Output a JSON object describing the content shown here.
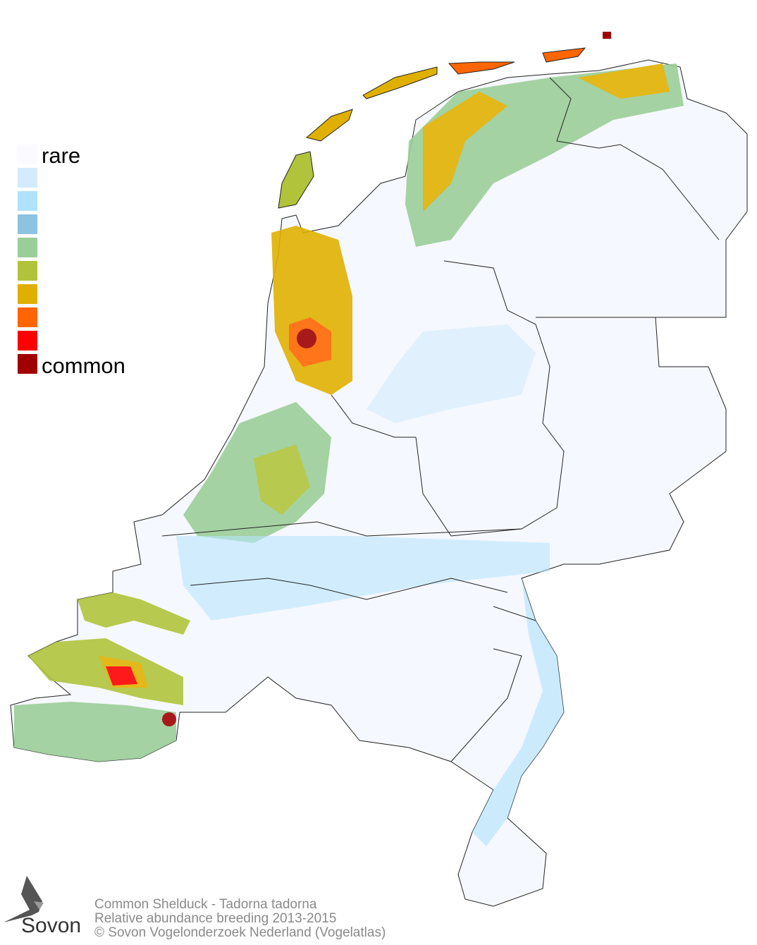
{
  "legend": {
    "top_label": "rare",
    "bottom_label": "common",
    "colors": [
      "#fbfbff",
      "#d3ebfb",
      "#b0e2fb",
      "#8cc3e0",
      "#9bcd98",
      "#b0c33a",
      "#e0b000",
      "#ff6600",
      "#ff0000",
      "#a00000"
    ]
  },
  "credits": {
    "line1": "Common Shelduck - Tadorna tadorna",
    "line2": "Relative abundance breeding 2013-2015",
    "line3": "© Sovon Vogelonderzoek Nederland (Vogelatlas)"
  },
  "logo": {
    "text": "Sovon",
    "icon": "swallow-icon"
  }
}
